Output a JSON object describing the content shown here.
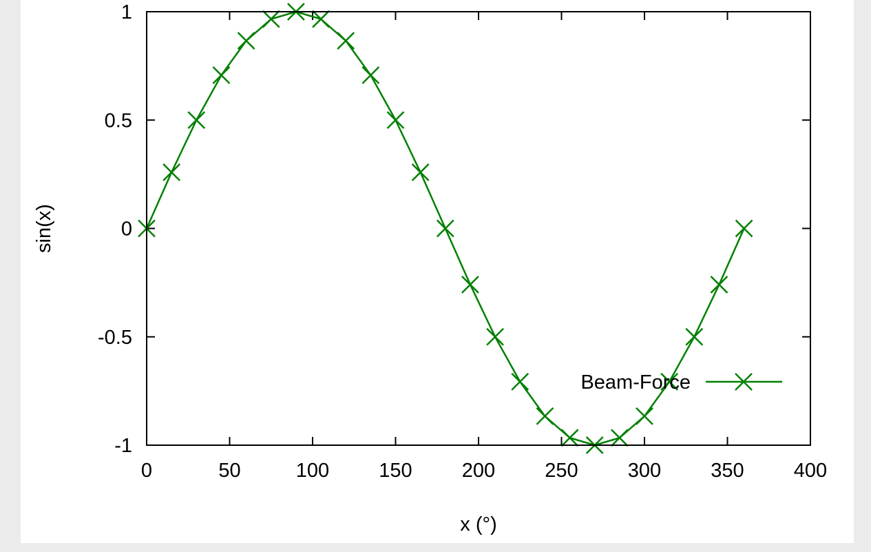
{
  "colors": {
    "background": "#ebebeb",
    "panel": "#ffffff",
    "series": "#008000",
    "axis": "#000000"
  },
  "chart_data": {
    "type": "line",
    "title": "",
    "xlabel": "x (°)",
    "ylabel": "sin(x)",
    "xlim": [
      0,
      400
    ],
    "ylim": [
      -1,
      1
    ],
    "xticks": [
      0,
      50,
      100,
      150,
      200,
      250,
      300,
      350,
      400
    ],
    "xtick_labels": [
      "0",
      "50",
      "100",
      "150",
      "200",
      "250",
      "300",
      "350",
      "400"
    ],
    "yticks": [
      -1,
      -0.5,
      0,
      0.5,
      1
    ],
    "ytick_labels": [
      "-1",
      "-0.5",
      "0",
      "0.5",
      "1"
    ],
    "grid": false,
    "legend_position": "bottom-right",
    "series": [
      {
        "name": "Beam-Force",
        "marker": "x",
        "color": "#008000",
        "x": [
          0,
          15,
          30,
          45,
          60,
          75,
          90,
          105,
          120,
          135,
          150,
          165,
          180,
          195,
          210,
          225,
          240,
          255,
          270,
          285,
          300,
          315,
          330,
          345,
          360
        ],
        "y": [
          0,
          0.259,
          0.5,
          0.707,
          0.866,
          0.966,
          1,
          0.966,
          0.866,
          0.707,
          0.5,
          0.259,
          0,
          -0.259,
          -0.5,
          -0.707,
          -0.866,
          -0.966,
          -1,
          -0.966,
          -0.866,
          -0.707,
          -0.5,
          -0.259,
          0
        ]
      }
    ]
  }
}
